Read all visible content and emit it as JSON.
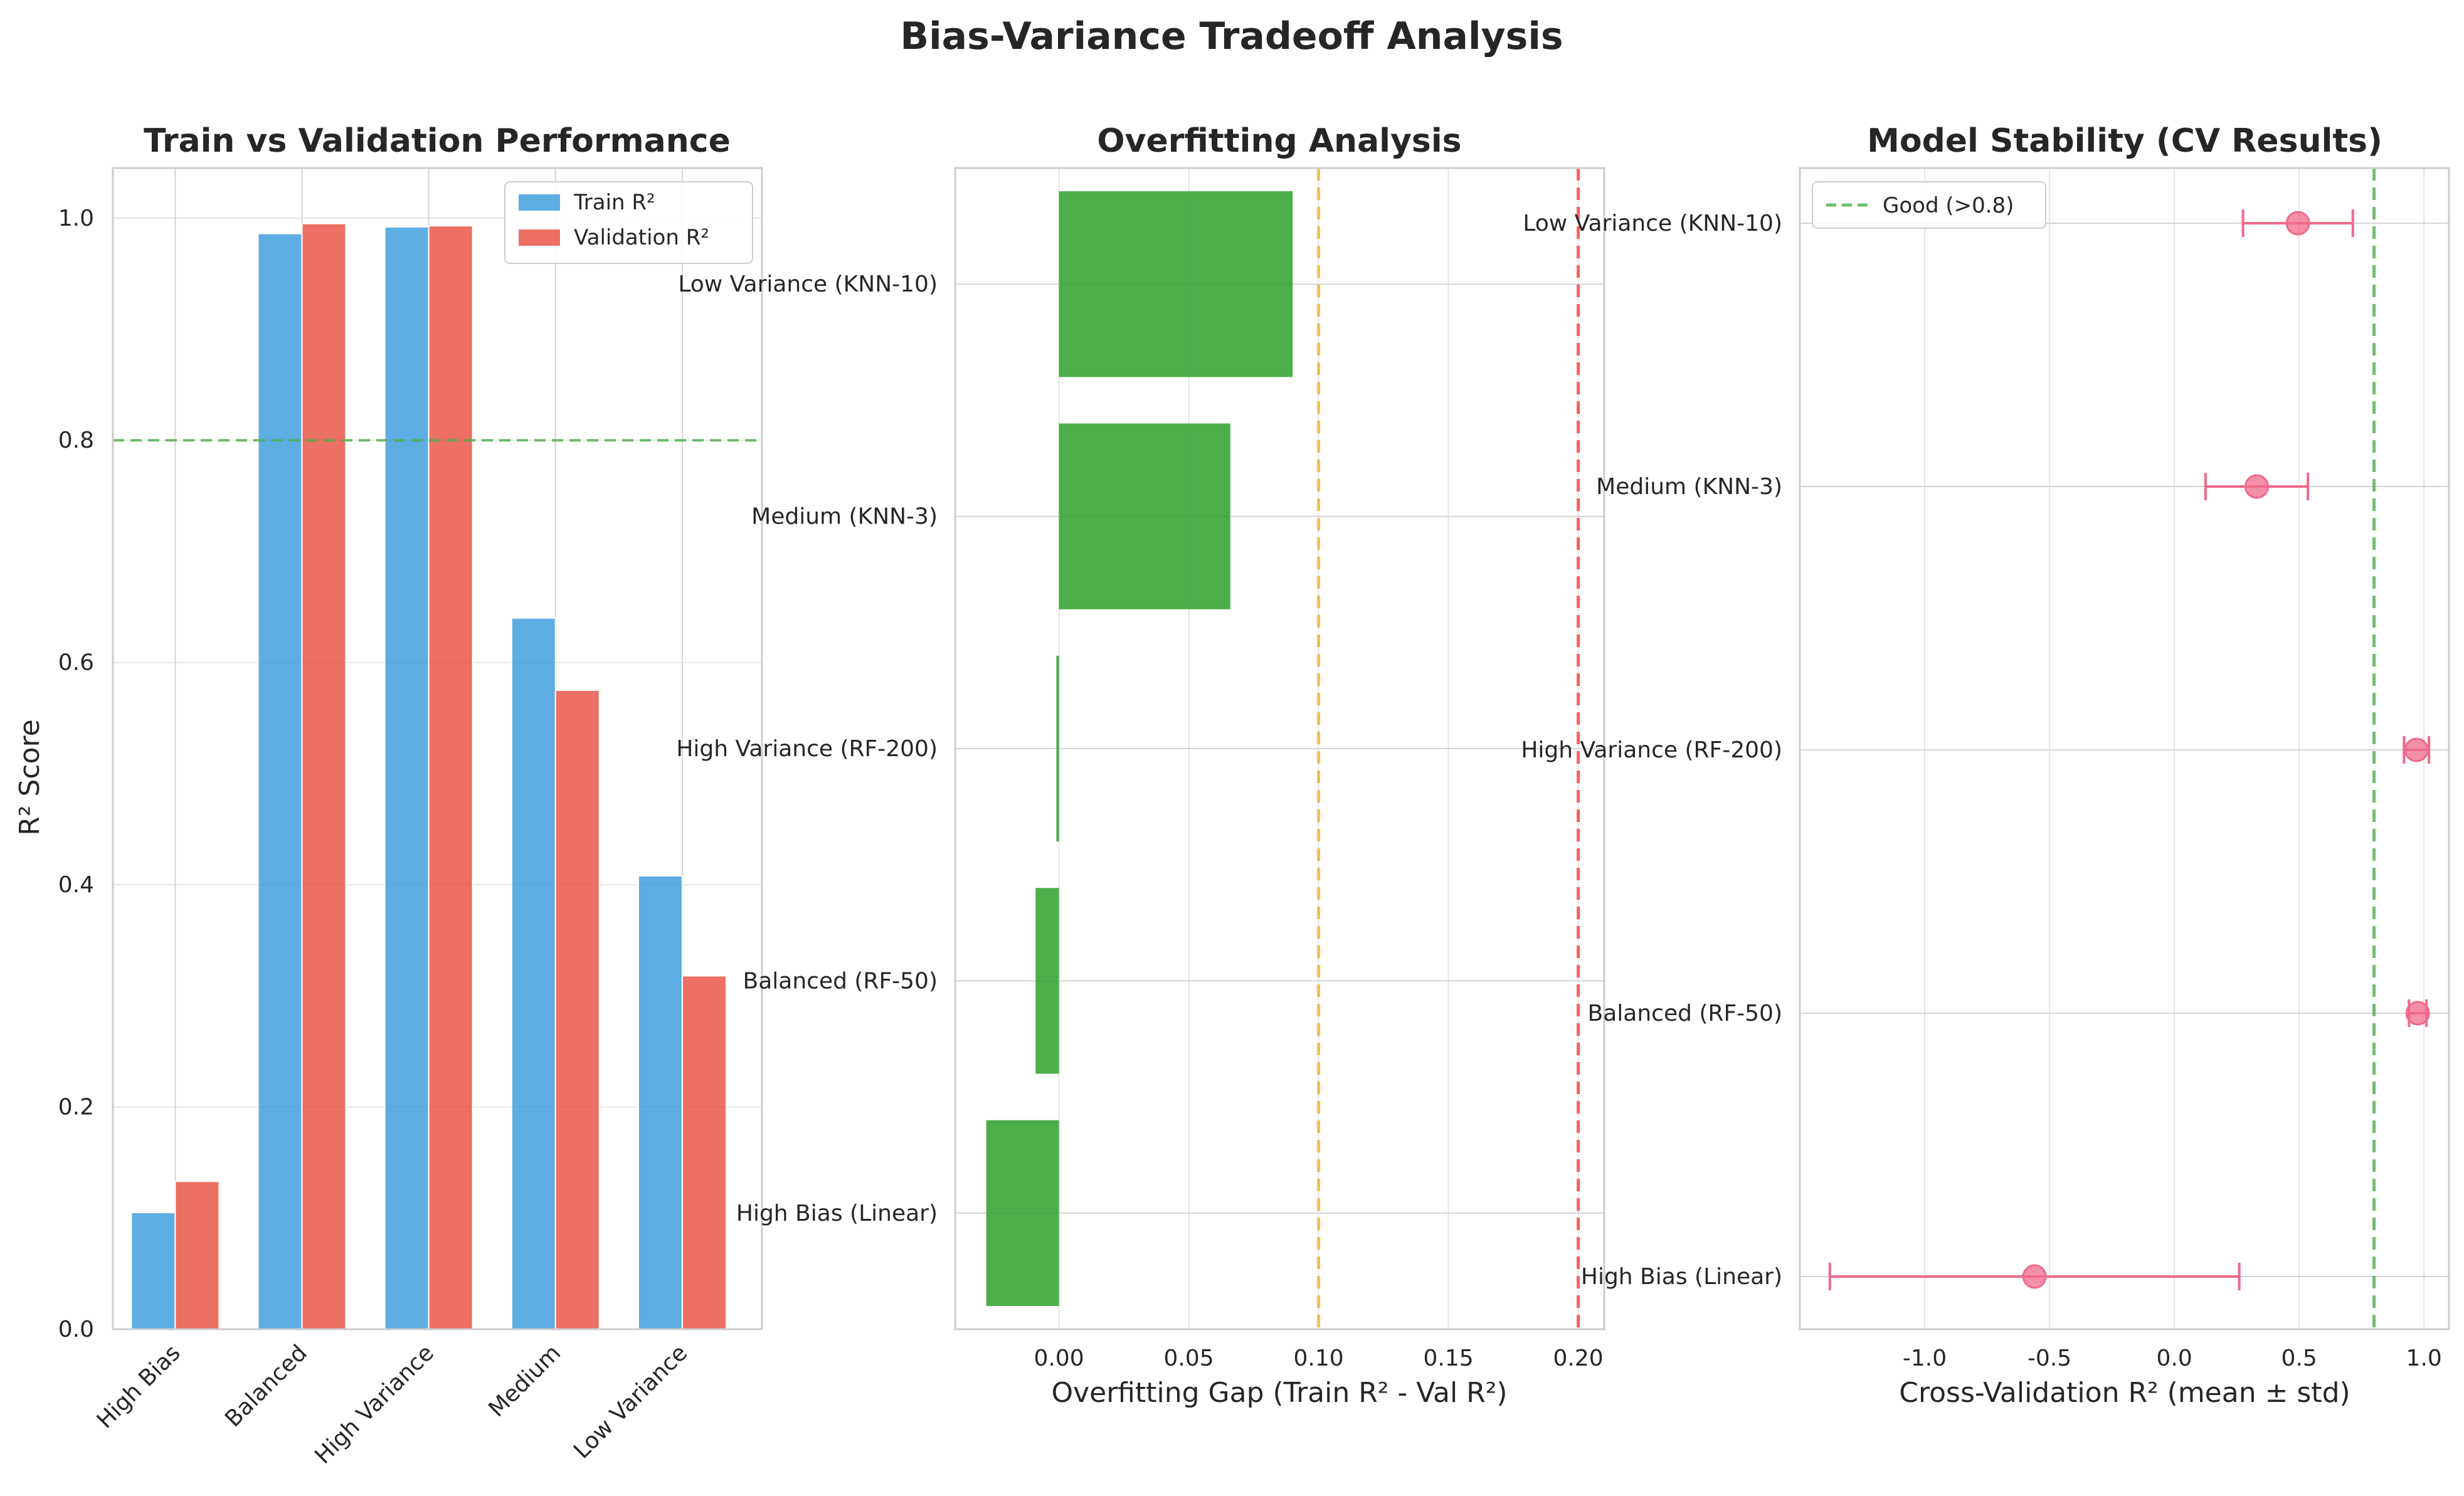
{
  "figure": {
    "title": "Bias-Variance Tradeoff Analysis"
  },
  "chart_data": [
    {
      "type": "bar",
      "title": "Train vs Validation Performance",
      "xlabel": "",
      "ylabel": "R² Score",
      "categories": [
        "High Bias",
        "Balanced",
        "High Variance",
        "Medium",
        "Low Variance"
      ],
      "series": [
        {
          "name": "Train R²",
          "color": "#3498db",
          "values": [
            0.105,
            0.986,
            0.992,
            0.64,
            0.408
          ]
        },
        {
          "name": "Validation R²",
          "color": "#e74c3c",
          "values": [
            0.133,
            0.995,
            0.993,
            0.575,
            0.318
          ]
        }
      ],
      "reference_line": {
        "value": 0.8,
        "color": "#4daf4a",
        "style": "dashed"
      },
      "ylim": [
        0,
        1.045
      ],
      "yticks": [
        0.0,
        0.2,
        0.4,
        0.6,
        0.8,
        1.0
      ],
      "ytick_labels": [
        "0.0",
        "0.2",
        "0.4",
        "0.6",
        "0.8",
        "1.0"
      ],
      "legend": "top-right",
      "grid": true
    },
    {
      "type": "bar",
      "orientation": "horizontal",
      "title": "Overfitting Analysis",
      "xlabel": "Overfitting Gap (Train R² - Val R²)",
      "ylabel": "",
      "categories": [
        "High Bias (Linear)",
        "Balanced (RF-50)",
        "High Variance (RF-200)",
        "Medium (KNN-3)",
        "Low Variance (KNN-10)"
      ],
      "values": [
        -0.028,
        -0.009,
        -0.001,
        0.066,
        0.09
      ],
      "color": "#2ca02c",
      "reference_lines": [
        {
          "value": 0.1,
          "color": "#f4b942",
          "style": "dashed"
        },
        {
          "value": 0.2,
          "color": "#ff4d4d",
          "style": "dashed"
        }
      ],
      "xlim": [
        -0.04,
        0.21
      ],
      "xticks": [
        0.0,
        0.05,
        0.1,
        0.15,
        0.2
      ],
      "xtick_labels": [
        "0.00",
        "0.05",
        "0.10",
        "0.15",
        "0.20"
      ],
      "grid": true
    },
    {
      "type": "scatter",
      "subtype": "errorbar",
      "title": "Model Stability (CV Results)",
      "xlabel": "Cross-Validation R² (mean ± std)",
      "ylabel": "",
      "categories": [
        "High Bias (Linear)",
        "Balanced (RF-50)",
        "High Variance (RF-200)",
        "Medium (KNN-3)",
        "Low Variance (KNN-10)"
      ],
      "means": [
        -0.56,
        0.975,
        0.97,
        0.33,
        0.495
      ],
      "stds": [
        0.82,
        0.035,
        0.05,
        0.205,
        0.22
      ],
      "color": "#f06a8a",
      "reference_line": {
        "value": 0.8,
        "color": "#4daf4a",
        "style": "dashed",
        "label": "Good (>0.8)"
      },
      "xlim": [
        -1.5,
        1.1
      ],
      "xticks": [
        -1.0,
        -0.5,
        0.0,
        0.5,
        1.0
      ],
      "xtick_labels": [
        "-1.0",
        "-0.5",
        "0.0",
        "0.5",
        "1.0"
      ],
      "legend": "top-left",
      "grid": true
    }
  ]
}
